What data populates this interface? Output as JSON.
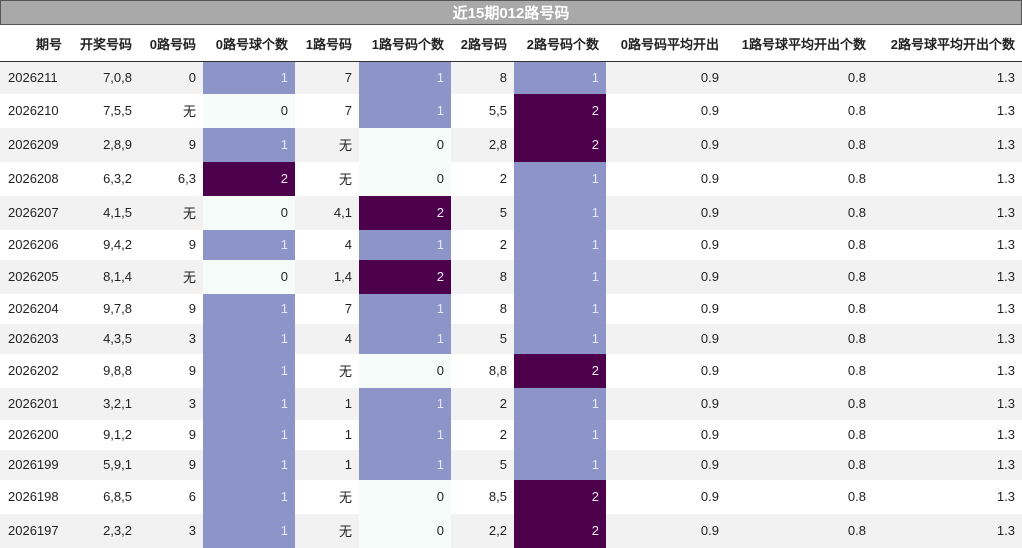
{
  "title": "近15期012路号码",
  "headers": [
    "期号",
    "开奖号码",
    "0路号码",
    "0路号球个数",
    "1路号码",
    "1路号码个数",
    "2路号码",
    "2路号码个数",
    "0路号码平均开出",
    "1路号球平均开出个数",
    "2路号球平均开出个数"
  ],
  "rows": [
    {
      "period": "2026211",
      "draw": "7,0,8",
      "r0": "0",
      "r0c": "1",
      "r1": "7",
      "r1c": "1",
      "r2": "8",
      "r2c": "1",
      "avg0": "0.9",
      "avg1": "0.8",
      "avg2": "1.3"
    },
    {
      "period": "2026210",
      "draw": "7,5,5",
      "r0": "无",
      "r0c": "0",
      "r1": "7",
      "r1c": "1",
      "r2": "5,5",
      "r2c": "2",
      "avg0": "0.9",
      "avg1": "0.8",
      "avg2": "1.3"
    },
    {
      "period": "2026209",
      "draw": "2,8,9",
      "r0": "9",
      "r0c": "1",
      "r1": "无",
      "r1c": "0",
      "r2": "2,8",
      "r2c": "2",
      "avg0": "0.9",
      "avg1": "0.8",
      "avg2": "1.3"
    },
    {
      "period": "2026208",
      "draw": "6,3,2",
      "r0": "6,3",
      "r0c": "2",
      "r1": "无",
      "r1c": "0",
      "r2": "2",
      "r2c": "1",
      "avg0": "0.9",
      "avg1": "0.8",
      "avg2": "1.3"
    },
    {
      "period": "2026207",
      "draw": "4,1,5",
      "r0": "无",
      "r0c": "0",
      "r1": "4,1",
      "r1c": "2",
      "r2": "5",
      "r2c": "1",
      "avg0": "0.9",
      "avg1": "0.8",
      "avg2": "1.3"
    },
    {
      "period": "2026206",
      "draw": "9,4,2",
      "r0": "9",
      "r0c": "1",
      "r1": "4",
      "r1c": "1",
      "r2": "2",
      "r2c": "1",
      "avg0": "0.9",
      "avg1": "0.8",
      "avg2": "1.3"
    },
    {
      "period": "2026205",
      "draw": "8,1,4",
      "r0": "无",
      "r0c": "0",
      "r1": "1,4",
      "r1c": "2",
      "r2": "8",
      "r2c": "1",
      "avg0": "0.9",
      "avg1": "0.8",
      "avg2": "1.3"
    },
    {
      "period": "2026204",
      "draw": "9,7,8",
      "r0": "9",
      "r0c": "1",
      "r1": "7",
      "r1c": "1",
      "r2": "8",
      "r2c": "1",
      "avg0": "0.9",
      "avg1": "0.8",
      "avg2": "1.3"
    },
    {
      "period": "2026203",
      "draw": "4,3,5",
      "r0": "3",
      "r0c": "1",
      "r1": "4",
      "r1c": "1",
      "r2": "5",
      "r2c": "1",
      "avg0": "0.9",
      "avg1": "0.8",
      "avg2": "1.3"
    },
    {
      "period": "2026202",
      "draw": "9,8,8",
      "r0": "9",
      "r0c": "1",
      "r1": "无",
      "r1c": "0",
      "r2": "8,8",
      "r2c": "2",
      "avg0": "0.9",
      "avg1": "0.8",
      "avg2": "1.3"
    },
    {
      "period": "2026201",
      "draw": "3,2,1",
      "r0": "3",
      "r0c": "1",
      "r1": "1",
      "r1c": "1",
      "r2": "2",
      "r2c": "1",
      "avg0": "0.9",
      "avg1": "0.8",
      "avg2": "1.3"
    },
    {
      "period": "2026200",
      "draw": "9,1,2",
      "r0": "9",
      "r0c": "1",
      "r1": "1",
      "r1c": "1",
      "r2": "2",
      "r2c": "1",
      "avg0": "0.9",
      "avg1": "0.8",
      "avg2": "1.3"
    },
    {
      "period": "2026199",
      "draw": "5,9,1",
      "r0": "9",
      "r0c": "1",
      "r1": "1",
      "r1c": "1",
      "r2": "5",
      "r2c": "1",
      "avg0": "0.9",
      "avg1": "0.8",
      "avg2": "1.3"
    },
    {
      "period": "2026198",
      "draw": "6,8,5",
      "r0": "6",
      "r0c": "1",
      "r1": "无",
      "r1c": "0",
      "r2": "8,5",
      "r2c": "2",
      "avg0": "0.9",
      "avg1": "0.8",
      "avg2": "1.3"
    },
    {
      "period": "2026197",
      "draw": "2,3,2",
      "r0": "3",
      "r0c": "1",
      "r1": "无",
      "r1c": "0",
      "r2": "2,2",
      "r2c": "2",
      "avg0": "0.9",
      "avg1": "0.8",
      "avg2": "1.3"
    }
  ],
  "colors": {
    "count_0": "#f5fcfa",
    "count_1": "#8c94c8",
    "count_2": "#4d004b",
    "header_bg": "#a9a9a9"
  }
}
